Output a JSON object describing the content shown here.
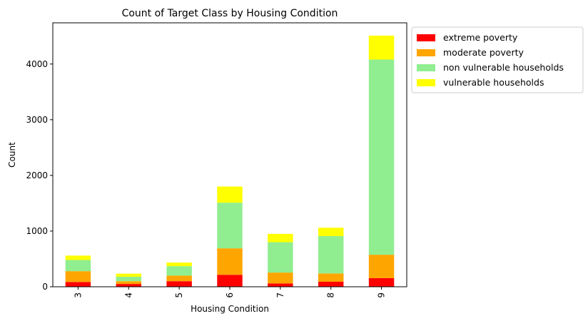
{
  "chart_data": {
    "type": "bar",
    "stacked": true,
    "title": "Count of Target Class by Housing Condition",
    "xlabel": "Housing Condition",
    "ylabel": "Count",
    "categories": [
      "3",
      "4",
      "5",
      "6",
      "7",
      "8",
      "9"
    ],
    "ylim": [
      0,
      4740
    ],
    "yticks": [
      0,
      1000,
      2000,
      3000,
      4000
    ],
    "legend_position": "outside-top-right",
    "grid": false,
    "series": [
      {
        "name": "extreme poverty",
        "color": "#ff0000",
        "values": [
          85,
          50,
          100,
          215,
          60,
          90,
          155
        ]
      },
      {
        "name": "moderate poverty",
        "color": "#ffa500",
        "values": [
          195,
          50,
          100,
          475,
          195,
          150,
          420
        ]
      },
      {
        "name": "non vulnerable households",
        "color": "#90ee90",
        "values": [
          200,
          80,
          170,
          820,
          545,
          670,
          3505
        ]
      },
      {
        "name": "vulnerable households",
        "color": "#ffff00",
        "values": [
          80,
          55,
          65,
          290,
          150,
          150,
          430
        ]
      }
    ]
  }
}
